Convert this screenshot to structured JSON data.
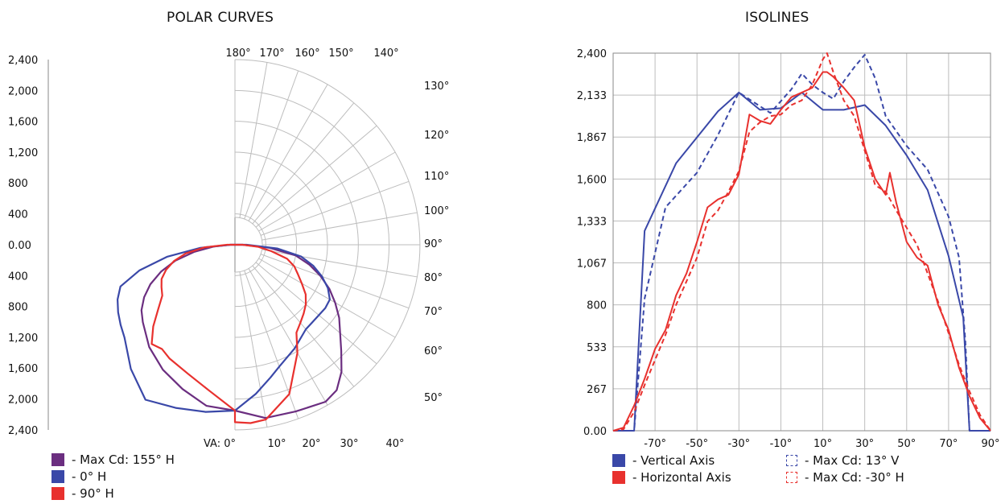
{
  "polar": {
    "title": "POLAR CURVES",
    "intensity_labels_top": [
      "2,400",
      "2,000",
      "1,600",
      "1,200",
      "800",
      "400",
      "0.00"
    ],
    "intensity_labels_bottom": [
      "400",
      "800",
      "1,200",
      "1,600",
      "2,000",
      "2,400"
    ],
    "top_angle_labels": [
      "180°",
      "170°",
      "160°",
      "150°",
      "140°"
    ],
    "right_angle_labels": [
      "130°",
      "120°",
      "110°",
      "100°",
      "90°",
      "80°",
      "70°",
      "60°",
      "50°"
    ],
    "bottom_angle_labels": [
      "VA: 0°",
      "10°",
      "20°",
      "30°",
      "40°"
    ],
    "legend": [
      {
        "label": "- Max Cd: 155° H",
        "color": "#6b2e80"
      },
      {
        "label": "- 0° H",
        "color": "#3a48a8"
      },
      {
        "label": "- 90° H",
        "color": "#e8312e"
      }
    ]
  },
  "isolines": {
    "title": "ISOLINES",
    "legend": [
      {
        "label": "- Vertical Axis",
        "color": "#3a48a8",
        "style": "solid"
      },
      {
        "label": "- Horizontal Axis",
        "color": "#e8312e",
        "style": "solid"
      },
      {
        "label": "- Max Cd: 13° V",
        "color": "#3a48a8",
        "style": "dashed"
      },
      {
        "label": "- Max Cd: -30° H",
        "color": "#e8312e",
        "style": "dashed"
      }
    ]
  },
  "colors": {
    "purple": "#6b2e80",
    "blue": "#3a48a8",
    "red": "#e8312e",
    "grid": "#bdbdbd"
  },
  "chart_data": [
    {
      "type": "polar",
      "title": "POLAR CURVES",
      "r_max": 2400,
      "r_ticks": [
        400,
        800,
        1200,
        1600,
        2000,
        2400
      ],
      "angle_ticks_deg": [
        0,
        10,
        20,
        30,
        40,
        50,
        60,
        70,
        80,
        90,
        100,
        110,
        120,
        130,
        140,
        150,
        160,
        170,
        180
      ],
      "series": [
        {
          "name": "- Max Cd: 155° H",
          "color": "#6b2e80",
          "right": [
            [
              0,
              2150
            ],
            [
              10,
              2280
            ],
            [
              20,
              2300
            ],
            [
              30,
              2350
            ],
            [
              35,
              2300
            ],
            [
              40,
              2150
            ],
            [
              45,
              1950
            ],
            [
              50,
              1780
            ],
            [
              55,
              1650
            ],
            [
              60,
              1500
            ],
            [
              65,
              1350
            ],
            [
              70,
              1180
            ],
            [
              75,
              1000
            ],
            [
              80,
              800
            ],
            [
              85,
              450
            ],
            [
              90,
              100
            ]
          ],
          "left": [
            [
              0,
              2150
            ],
            [
              10,
              2120
            ],
            [
              20,
              1990
            ],
            [
              30,
              1870
            ],
            [
              40,
              1730
            ],
            [
              50,
              1560
            ],
            [
              55,
              1480
            ],
            [
              60,
              1360
            ],
            [
              65,
              1210
            ],
            [
              70,
              1020
            ],
            [
              75,
              800
            ],
            [
              80,
              540
            ],
            [
              85,
              280
            ],
            [
              90,
              60
            ]
          ]
        },
        {
          "name": "- 0° H",
          "color": "#3a48a8",
          "right": [
            [
              0,
              2150
            ],
            [
              8,
              1950
            ],
            [
              15,
              1780
            ],
            [
              20,
              1680
            ],
            [
              30,
              1550
            ],
            [
              40,
              1430
            ],
            [
              45,
              1420
            ],
            [
              50,
              1420
            ],
            [
              55,
              1430
            ],
            [
              60,
              1420
            ],
            [
              65,
              1330
            ],
            [
              70,
              1200
            ],
            [
              75,
              1050
            ],
            [
              80,
              870
            ],
            [
              85,
              550
            ],
            [
              90,
              150
            ]
          ],
          "left": [
            [
              0,
              2150
            ],
            [
              10,
              2200
            ],
            [
              20,
              2250
            ],
            [
              30,
              2320
            ],
            [
              40,
              2100
            ],
            [
              50,
              1870
            ],
            [
              55,
              1810
            ],
            [
              60,
              1750
            ],
            [
              65,
              1680
            ],
            [
              70,
              1580
            ],
            [
              75,
              1280
            ],
            [
              80,
              890
            ],
            [
              85,
              450
            ],
            [
              90,
              60
            ]
          ]
        },
        {
          "name": "- 90° H",
          "color": "#e8312e",
          "right": [
            [
              0,
              2300
            ],
            [
              5,
              2320
            ],
            [
              10,
              2300
            ],
            [
              20,
              2060
            ],
            [
              30,
              1620
            ],
            [
              35,
              1390
            ],
            [
              40,
              1320
            ],
            [
              45,
              1260
            ],
            [
              50,
              1200
            ],
            [
              55,
              1120
            ],
            [
              60,
              1000
            ],
            [
              65,
              900
            ],
            [
              70,
              820
            ],
            [
              75,
              700
            ],
            [
              80,
              480
            ],
            [
              85,
              300
            ],
            [
              90,
              100
            ]
          ],
          "left": [
            [
              0,
              2150
            ],
            [
              10,
              1920
            ],
            [
              20,
              1780
            ],
            [
              30,
              1700
            ],
            [
              35,
              1650
            ],
            [
              40,
              1680
            ],
            [
              45,
              1500
            ],
            [
              50,
              1300
            ],
            [
              55,
              1150
            ],
            [
              60,
              1100
            ],
            [
              65,
              1050
            ],
            [
              70,
              950
            ],
            [
              75,
              820
            ],
            [
              80,
              650
            ],
            [
              85,
              400
            ],
            [
              90,
              100
            ]
          ]
        }
      ]
    },
    {
      "type": "line",
      "title": "ISOLINES",
      "x_tick_labels": [
        "-70°",
        "-50°",
        "-30°",
        "-10°",
        "10°",
        "30°",
        "50°",
        "70°",
        "90°"
      ],
      "y_tick_labels": [
        "0.00",
        "267",
        "533",
        "800",
        "1,067",
        "1,333",
        "1,600",
        "1,867",
        "2,133",
        "2,400"
      ],
      "xlim": [
        -90,
        90
      ],
      "ylim": [
        0,
        2400
      ],
      "grid": true,
      "series": [
        {
          "name": "- Vertical Axis",
          "color": "#3a48a8",
          "style": "solid",
          "x": [
            -90,
            -80,
            -75,
            -60,
            -40,
            -30,
            -20,
            -10,
            0,
            10,
            20,
            30,
            40,
            50,
            60,
            70,
            77,
            80,
            90
          ],
          "y": [
            0,
            0,
            1270,
            1700,
            2030,
            2150,
            2040,
            2050,
            2150,
            2040,
            2040,
            2070,
            1940,
            1750,
            1530,
            1110,
            720,
            0,
            0
          ]
        },
        {
          "name": "- Max Cd: 13° V",
          "color": "#3a48a8",
          "style": "dashed",
          "x": [
            -90,
            -80,
            -75,
            -65,
            -50,
            -40,
            -30,
            -22,
            -15,
            -5,
            0,
            5,
            10,
            15,
            20,
            25,
            30,
            35,
            40,
            50,
            60,
            70,
            75,
            78,
            80,
            90
          ],
          "y": [
            0,
            0,
            840,
            1420,
            1640,
            1880,
            2150,
            2080,
            2020,
            2170,
            2270,
            2200,
            2150,
            2110,
            2220,
            2310,
            2390,
            2240,
            2000,
            1810,
            1660,
            1360,
            1100,
            570,
            0,
            0
          ]
        },
        {
          "name": "- Horizontal Axis",
          "color": "#e8312e",
          "style": "solid",
          "x": [
            -90,
            -85,
            -80,
            -75,
            -70,
            -65,
            -60,
            -55,
            -50,
            -45,
            -40,
            -35,
            -30,
            -25,
            -20,
            -15,
            -10,
            -5,
            0,
            5,
            10,
            12,
            15,
            20,
            25,
            30,
            35,
            40,
            42,
            45,
            50,
            55,
            60,
            65,
            70,
            75,
            80,
            85,
            90
          ],
          "y": [
            0,
            20,
            160,
            330,
            520,
            640,
            860,
            1000,
            1200,
            1420,
            1470,
            1500,
            1630,
            2010,
            1970,
            1950,
            2040,
            2120,
            2150,
            2180,
            2280,
            2280,
            2250,
            2180,
            2100,
            1800,
            1600,
            1500,
            1640,
            1450,
            1200,
            1100,
            1050,
            800,
            640,
            400,
            220,
            80,
            0
          ]
        },
        {
          "name": "- Max Cd: -30° H",
          "color": "#e8312e",
          "style": "dashed",
          "x": [
            -90,
            -85,
            -80,
            -75,
            -70,
            -65,
            -60,
            -55,
            -50,
            -45,
            -40,
            -35,
            -30,
            -25,
            -20,
            -15,
            -10,
            -5,
            0,
            5,
            10,
            12,
            15,
            20,
            25,
            30,
            35,
            40,
            45,
            50,
            55,
            60,
            65,
            70,
            75,
            80,
            85,
            90
          ],
          "y": [
            0,
            10,
            120,
            290,
            450,
            610,
            800,
            950,
            1100,
            1330,
            1400,
            1520,
            1650,
            1900,
            1960,
            2000,
            2010,
            2070,
            2100,
            2200,
            2360,
            2400,
            2280,
            2100,
            2000,
            1780,
            1560,
            1520,
            1400,
            1290,
            1180,
            1000,
            820,
            620,
            420,
            250,
            100,
            0
          ]
        }
      ]
    }
  ]
}
